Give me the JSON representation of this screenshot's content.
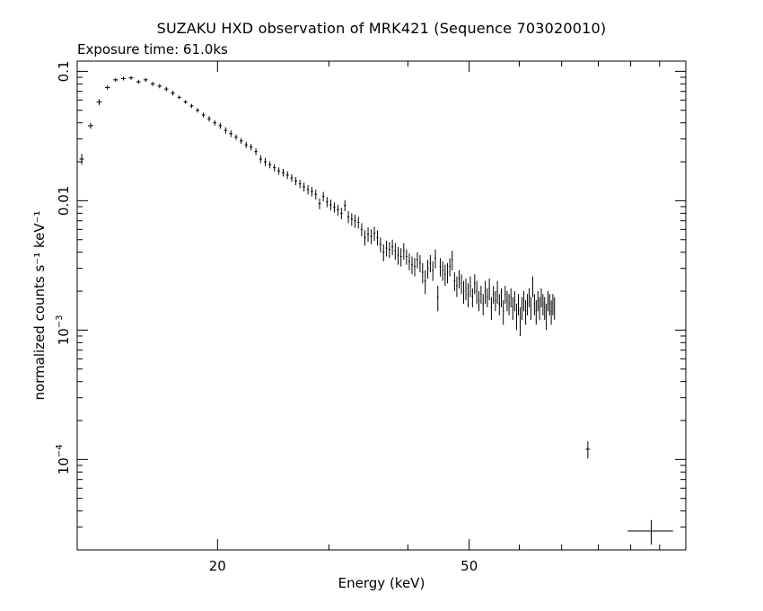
{
  "chart_data": {
    "type": "scatter",
    "title": "SUZAKU HXD observation of MRK421 (Sequence 703020010)",
    "subtitle": "Exposure time: 61.0ks",
    "xlabel": "Energy (keV)",
    "ylabel": "normalized counts s⁻¹ keV⁻¹",
    "x_scale": "log",
    "y_scale": "log",
    "xlim": [
      12,
      110
    ],
    "ylim": [
      2e-05,
      0.12
    ],
    "x_ticks": [
      {
        "value": 20,
        "label": "20"
      },
      {
        "value": 50,
        "label": "50"
      }
    ],
    "y_ticks": [
      {
        "value": 0.0001,
        "base": "10",
        "exp": "−4"
      },
      {
        "value": 0.001,
        "base": "10",
        "exp": "−3"
      },
      {
        "value": 0.01,
        "label": "0.01"
      },
      {
        "value": 0.1,
        "label": "0.1"
      }
    ],
    "grid": false,
    "series": [
      {
        "points": [
          [
            12.2,
            0.021,
            0.1,
            0.002
          ],
          [
            12.6,
            0.038,
            0.12,
            0.002
          ],
          [
            13.0,
            0.058,
            0.12,
            0.003
          ],
          [
            13.4,
            0.075,
            0.12,
            0.003
          ],
          [
            13.8,
            0.086,
            0.12,
            0.003
          ],
          [
            14.2,
            0.088,
            0.12,
            0.003
          ],
          [
            14.6,
            0.089,
            0.12,
            0.003
          ],
          [
            15.0,
            0.083,
            0.12,
            0.003
          ],
          [
            15.4,
            0.086,
            0.12,
            0.003
          ],
          [
            15.8,
            0.08,
            0.12,
            0.003
          ],
          [
            16.2,
            0.077,
            0.12,
            0.003
          ],
          [
            16.6,
            0.073,
            0.12,
            0.003
          ],
          [
            17.0,
            0.068,
            0.12,
            0.003
          ],
          [
            17.4,
            0.063,
            0.12,
            0.002
          ],
          [
            17.8,
            0.058,
            0.12,
            0.002
          ],
          [
            18.2,
            0.054,
            0.12,
            0.002
          ],
          [
            18.6,
            0.05,
            0.12,
            0.002
          ],
          [
            19.0,
            0.046,
            0.12,
            0.002
          ],
          [
            19.4,
            0.043,
            0.12,
            0.002
          ],
          [
            19.8,
            0.04,
            0.12,
            0.002
          ],
          [
            20.2,
            0.038,
            0.12,
            0.002
          ],
          [
            20.6,
            0.035,
            0.12,
            0.002
          ],
          [
            21.0,
            0.033,
            0.12,
            0.002
          ],
          [
            21.4,
            0.031,
            0.12,
            0.0015
          ],
          [
            21.8,
            0.029,
            0.12,
            0.0015
          ],
          [
            22.2,
            0.027,
            0.12,
            0.0015
          ],
          [
            22.6,
            0.026,
            0.12,
            0.0015
          ],
          [
            23.0,
            0.024,
            0.12,
            0.0015
          ],
          [
            23.4,
            0.021,
            0.12,
            0.0015
          ],
          [
            23.8,
            0.02,
            0.12,
            0.0015
          ],
          [
            24.2,
            0.019,
            0.12,
            0.0012
          ],
          [
            24.6,
            0.018,
            0.12,
            0.0012
          ],
          [
            25.0,
            0.017,
            0.12,
            0.0011
          ],
          [
            25.4,
            0.0165,
            0.12,
            0.0011
          ],
          [
            25.8,
            0.0158,
            0.12,
            0.0011
          ],
          [
            26.2,
            0.015,
            0.12,
            0.001
          ],
          [
            26.6,
            0.0142,
            0.12,
            0.001
          ],
          [
            27.0,
            0.0135,
            0.12,
            0.001
          ],
          [
            27.4,
            0.0128,
            0.12,
            0.001
          ],
          [
            27.8,
            0.0122,
            0.12,
            0.001
          ],
          [
            28.2,
            0.0118,
            0.12,
            0.001
          ],
          [
            28.6,
            0.0112,
            0.12,
            0.001
          ],
          [
            29.0,
            0.0095,
            0.12,
            0.0009
          ],
          [
            29.4,
            0.0108,
            0.12,
            0.0009
          ],
          [
            29.8,
            0.0098,
            0.12,
            0.0009
          ],
          [
            30.2,
            0.0093,
            0.12,
            0.0009
          ],
          [
            30.6,
            0.0089,
            0.12,
            0.0008
          ],
          [
            31.0,
            0.0085,
            0.12,
            0.0008
          ],
          [
            31.4,
            0.008,
            0.12,
            0.0008
          ],
          [
            31.8,
            0.0092,
            0.12,
            0.0009
          ],
          [
            32.2,
            0.0075,
            0.12,
            0.0008
          ],
          [
            32.6,
            0.0072,
            0.12,
            0.0008
          ],
          [
            33.0,
            0.007,
            0.12,
            0.0008
          ],
          [
            33.4,
            0.0068,
            0.12,
            0.0007
          ],
          [
            33.8,
            0.006,
            0.12,
            0.0007
          ],
          [
            34.2,
            0.0052,
            0.12,
            0.0007
          ],
          [
            34.6,
            0.0055,
            0.12,
            0.0007
          ],
          [
            35.0,
            0.0053,
            0.12,
            0.0007
          ],
          [
            35.4,
            0.0056,
            0.12,
            0.0007
          ],
          [
            35.8,
            0.0052,
            0.12,
            0.0007
          ],
          [
            36.2,
            0.0046,
            0.12,
            0.0006
          ],
          [
            36.6,
            0.004,
            0.12,
            0.0006
          ],
          [
            37.0,
            0.0043,
            0.12,
            0.0006
          ],
          [
            37.4,
            0.0042,
            0.12,
            0.0006
          ],
          [
            37.8,
            0.0044,
            0.12,
            0.0006
          ],
          [
            38.2,
            0.0041,
            0.12,
            0.0006
          ],
          [
            38.6,
            0.0038,
            0.12,
            0.0006
          ],
          [
            39.0,
            0.0037,
            0.12,
            0.0006
          ],
          [
            39.4,
            0.0041,
            0.12,
            0.0006
          ],
          [
            39.8,
            0.0037,
            0.12,
            0.0005
          ],
          [
            40.2,
            0.0034,
            0.12,
            0.0005
          ],
          [
            40.6,
            0.0032,
            0.12,
            0.0005
          ],
          [
            41.0,
            0.0031,
            0.12,
            0.0005
          ],
          [
            41.4,
            0.0035,
            0.12,
            0.0005
          ],
          [
            41.8,
            0.0033,
            0.12,
            0.0005
          ],
          [
            42.2,
            0.0028,
            0.12,
            0.0005
          ],
          [
            42.6,
            0.0024,
            0.12,
            0.0005
          ],
          [
            43.0,
            0.003,
            0.12,
            0.0005
          ],
          [
            43.4,
            0.0033,
            0.12,
            0.0005
          ],
          [
            43.8,
            0.0029,
            0.12,
            0.0005
          ],
          [
            44.2,
            0.0036,
            0.12,
            0.0006
          ],
          [
            44.6,
            0.0018,
            0.12,
            0.0004
          ],
          [
            45.0,
            0.0031,
            0.12,
            0.0005
          ],
          [
            45.4,
            0.0029,
            0.12,
            0.0005
          ],
          [
            45.8,
            0.0027,
            0.12,
            0.0005
          ],
          [
            46.2,
            0.0028,
            0.12,
            0.0005
          ],
          [
            46.6,
            0.0031,
            0.12,
            0.0005
          ],
          [
            47.0,
            0.0035,
            0.12,
            0.0006
          ],
          [
            47.4,
            0.0024,
            0.12,
            0.0004
          ],
          [
            47.8,
            0.0022,
            0.12,
            0.0004
          ],
          [
            48.2,
            0.0025,
            0.12,
            0.0004
          ],
          [
            48.6,
            0.0023,
            0.12,
            0.0004
          ],
          [
            49.0,
            0.002,
            0.12,
            0.0004
          ],
          [
            49.4,
            0.0021,
            0.12,
            0.0004
          ],
          [
            49.8,
            0.0019,
            0.12,
            0.0004
          ],
          [
            50.2,
            0.0022,
            0.12,
            0.0004
          ],
          [
            50.6,
            0.0018,
            0.12,
            0.0003
          ],
          [
            51.0,
            0.0023,
            0.12,
            0.0004
          ],
          [
            51.4,
            0.002,
            0.12,
            0.0004
          ],
          [
            51.8,
            0.0017,
            0.12,
            0.0003
          ],
          [
            52.2,
            0.0019,
            0.12,
            0.0003
          ],
          [
            52.6,
            0.0016,
            0.12,
            0.0003
          ],
          [
            53.0,
            0.002,
            0.12,
            0.0004
          ],
          [
            53.4,
            0.0018,
            0.12,
            0.0003
          ],
          [
            53.8,
            0.0021,
            0.12,
            0.0004
          ],
          [
            54.2,
            0.0015,
            0.12,
            0.0003
          ],
          [
            54.6,
            0.0019,
            0.12,
            0.0003
          ],
          [
            55.0,
            0.0017,
            0.12,
            0.0003
          ],
          [
            55.4,
            0.002,
            0.12,
            0.0004
          ],
          [
            55.8,
            0.0016,
            0.12,
            0.0003
          ],
          [
            56.2,
            0.0018,
            0.12,
            0.0003
          ],
          [
            56.6,
            0.0014,
            0.12,
            0.0003
          ],
          [
            57.0,
            0.0019,
            0.12,
            0.0003
          ],
          [
            57.4,
            0.0017,
            0.12,
            0.0003
          ],
          [
            57.8,
            0.0016,
            0.12,
            0.0003
          ],
          [
            58.2,
            0.0018,
            0.12,
            0.0003
          ],
          [
            58.6,
            0.0015,
            0.12,
            0.0003
          ],
          [
            59.0,
            0.0017,
            0.12,
            0.0003
          ],
          [
            59.4,
            0.0013,
            0.12,
            0.0003
          ],
          [
            59.8,
            0.0016,
            0.12,
            0.0003
          ],
          [
            60.2,
            0.0012,
            0.12,
            0.0003
          ],
          [
            60.6,
            0.0015,
            0.12,
            0.0003
          ],
          [
            61.0,
            0.0017,
            0.12,
            0.0003
          ],
          [
            61.4,
            0.0014,
            0.12,
            0.0003
          ],
          [
            61.8,
            0.0016,
            0.12,
            0.0003
          ],
          [
            62.2,
            0.0018,
            0.12,
            0.0003
          ],
          [
            62.6,
            0.0015,
            0.12,
            0.0003
          ],
          [
            63.0,
            0.0022,
            0.12,
            0.0004
          ],
          [
            63.4,
            0.0016,
            0.12,
            0.0003
          ],
          [
            63.8,
            0.0014,
            0.12,
            0.0003
          ],
          [
            64.2,
            0.0017,
            0.12,
            0.0003
          ],
          [
            64.6,
            0.0015,
            0.12,
            0.0003
          ],
          [
            65.0,
            0.0018,
            0.12,
            0.0003
          ],
          [
            65.4,
            0.0016,
            0.12,
            0.0003
          ],
          [
            65.8,
            0.0015,
            0.12,
            0.0003
          ],
          [
            66.2,
            0.0013,
            0.12,
            0.0003
          ],
          [
            66.6,
            0.0017,
            0.12,
            0.0003
          ],
          [
            67.0,
            0.0016,
            0.12,
            0.0003
          ],
          [
            67.4,
            0.0014,
            0.12,
            0.0003
          ],
          [
            67.8,
            0.0016,
            0.12,
            0.0003
          ],
          [
            68.2,
            0.0015,
            0.12,
            0.0003
          ],
          [
            77.0,
            0.00012,
            0.6,
            1.8e-05
          ],
          [
            97.0,
            2.8e-05,
            8.0,
            6e-06
          ]
        ]
      }
    ]
  }
}
